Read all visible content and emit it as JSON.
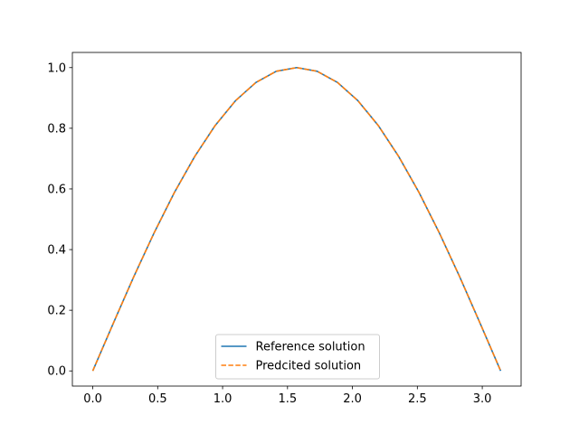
{
  "chart_data": {
    "type": "line",
    "title": "",
    "xlabel": "",
    "ylabel": "",
    "xlim": [
      -0.157,
      3.299
    ],
    "ylim": [
      -0.05,
      1.05
    ],
    "xticks": [
      0.0,
      0.5,
      1.0,
      1.5,
      2.0,
      2.5,
      3.0
    ],
    "xtick_labels": [
      "0.0",
      "0.5",
      "1.0",
      "1.5",
      "2.0",
      "2.5",
      "3.0"
    ],
    "yticks": [
      0.0,
      0.2,
      0.4,
      0.6,
      0.8,
      1.0
    ],
    "ytick_labels": [
      "0.0",
      "0.2",
      "0.4",
      "0.6",
      "0.8",
      "1.0"
    ],
    "grid": false,
    "legend_position": "lower-center",
    "series": [
      {
        "name": "Reference solution",
        "color": "#1f77b4",
        "style": "solid",
        "x": [
          0.0,
          0.1571,
          0.3142,
          0.4712,
          0.6283,
          0.7854,
          0.9425,
          1.0996,
          1.2566,
          1.4137,
          1.5708,
          1.7279,
          1.885,
          2.042,
          2.1991,
          2.3562,
          2.5133,
          2.6704,
          2.8274,
          2.9845,
          3.1416
        ],
        "y": [
          0.0,
          0.156,
          0.309,
          0.454,
          0.588,
          0.707,
          0.809,
          0.891,
          0.951,
          0.988,
          1.0,
          0.988,
          0.951,
          0.891,
          0.809,
          0.707,
          0.588,
          0.454,
          0.309,
          0.156,
          0.0
        ]
      },
      {
        "name": "Predcited solution",
        "color": "#ff7f0e",
        "style": "dashed",
        "x": [
          0.0,
          0.1571,
          0.3142,
          0.4712,
          0.6283,
          0.7854,
          0.9425,
          1.0996,
          1.2566,
          1.4137,
          1.5708,
          1.7279,
          1.885,
          2.042,
          2.1991,
          2.3562,
          2.5133,
          2.6704,
          2.8274,
          2.9845,
          3.1416
        ],
        "y": [
          0.0,
          0.156,
          0.309,
          0.454,
          0.588,
          0.707,
          0.809,
          0.891,
          0.951,
          0.988,
          1.0,
          0.988,
          0.951,
          0.891,
          0.809,
          0.707,
          0.588,
          0.454,
          0.309,
          0.156,
          0.0
        ]
      }
    ]
  }
}
